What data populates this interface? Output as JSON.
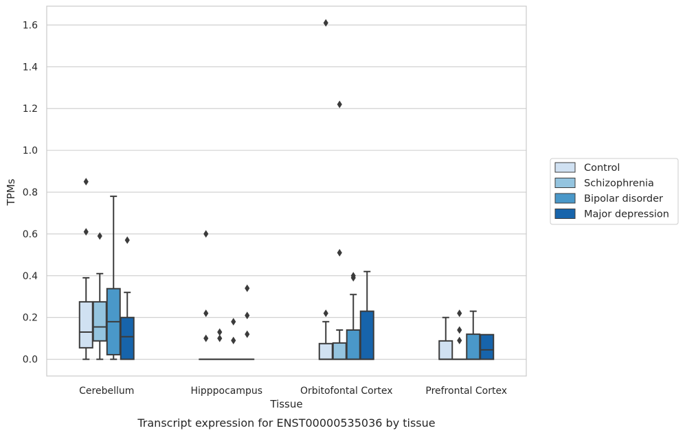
{
  "caption": "Transcript expression for ENST00000535036 by tissue",
  "chart_data": {
    "type": "box",
    "xlabel": "Tissue",
    "ylabel": "TPMs",
    "ylim": [
      -0.08,
      1.69
    ],
    "yticks": [
      "0.0",
      "0.2",
      "0.4",
      "0.6",
      "0.8",
      "1.0",
      "1.2",
      "1.4",
      "1.6"
    ],
    "categories": [
      "Cerebellum",
      "Hipppocampus",
      "Orbitofontal Cortex",
      "Prefrontal Cortex"
    ],
    "grid": true,
    "legend_position": "right",
    "series": [
      {
        "name": "Control",
        "color": "#d0e1f2",
        "boxes": [
          {
            "whislo": 0.0,
            "q1": 0.055,
            "med": 0.13,
            "q3": 0.275,
            "whishi": 0.39,
            "fliers": [
              0.61,
              0.85
            ]
          },
          {
            "whislo": 0.0,
            "q1": 0.0,
            "med": 0.0,
            "q3": 0.0,
            "whishi": 0.0,
            "fliers": [
              0.1,
              0.22,
              0.6
            ]
          },
          {
            "whislo": 0.0,
            "q1": 0.0,
            "med": 0.0,
            "q3": 0.075,
            "whishi": 0.18,
            "fliers": [
              0.22,
              1.61
            ]
          },
          {
            "whislo": 0.0,
            "q1": 0.0,
            "med": 0.0,
            "q3": 0.088,
            "whishi": 0.2,
            "fliers": []
          }
        ]
      },
      {
        "name": "Schizophrenia",
        "color": "#94c4df",
        "boxes": [
          {
            "whislo": 0.0,
            "q1": 0.088,
            "med": 0.155,
            "q3": 0.275,
            "whislhi": 0.41,
            "whishi": 0.41,
            "fliers": [
              0.59
            ]
          },
          {
            "whislo": 0.0,
            "q1": 0.0,
            "med": 0.0,
            "q3": 0.0,
            "whishi": 0.0,
            "fliers": [
              0.1,
              0.13
            ]
          },
          {
            "whislo": 0.0,
            "q1": 0.0,
            "med": 0.0,
            "q3": 0.078,
            "whishi": 0.14,
            "fliers": [
              0.51,
              1.22
            ]
          },
          {
            "whislo": 0.0,
            "q1": 0.0,
            "med": 0.0,
            "q3": 0.0,
            "whishi": 0.0,
            "fliers": [
              0.09,
              0.14,
              0.22
            ]
          }
        ]
      },
      {
        "name": "Bipolar disorder",
        "color": "#4a98c9",
        "boxes": [
          {
            "whislo": 0.0,
            "q1": 0.022,
            "med": 0.18,
            "q3": 0.338,
            "whishi": 0.78,
            "fliers": []
          },
          {
            "whislo": 0.0,
            "q1": 0.0,
            "med": 0.0,
            "q3": 0.0,
            "whishi": 0.0,
            "fliers": [
              0.09,
              0.18
            ]
          },
          {
            "whislo": 0.0,
            "q1": 0.0,
            "med": 0.0,
            "q3": 0.14,
            "whishi": 0.31,
            "fliers": [
              0.39,
              0.4
            ]
          },
          {
            "whislo": 0.0,
            "q1": 0.0,
            "med": 0.0,
            "q3": 0.12,
            "whishi": 0.23,
            "fliers": []
          }
        ]
      },
      {
        "name": "Major depression",
        "color": "#1764ab",
        "boxes": [
          {
            "whislo": 0.0,
            "q1": 0.0,
            "med": 0.108,
            "q3": 0.2,
            "whishi": 0.32,
            "fliers": [
              0.57
            ]
          },
          {
            "whislo": 0.0,
            "q1": 0.0,
            "med": 0.0,
            "q3": 0.0,
            "whishi": 0.0,
            "fliers": [
              0.12,
              0.21,
              0.34
            ]
          },
          {
            "whislo": 0.0,
            "q1": 0.0,
            "med": 0.0,
            "q3": 0.23,
            "whishi": 0.42,
            "fliers": []
          },
          {
            "whislo": 0.0,
            "q1": 0.0,
            "med": 0.045,
            "q3": 0.118,
            "whishi": 0.118,
            "fliers": []
          }
        ]
      }
    ]
  }
}
